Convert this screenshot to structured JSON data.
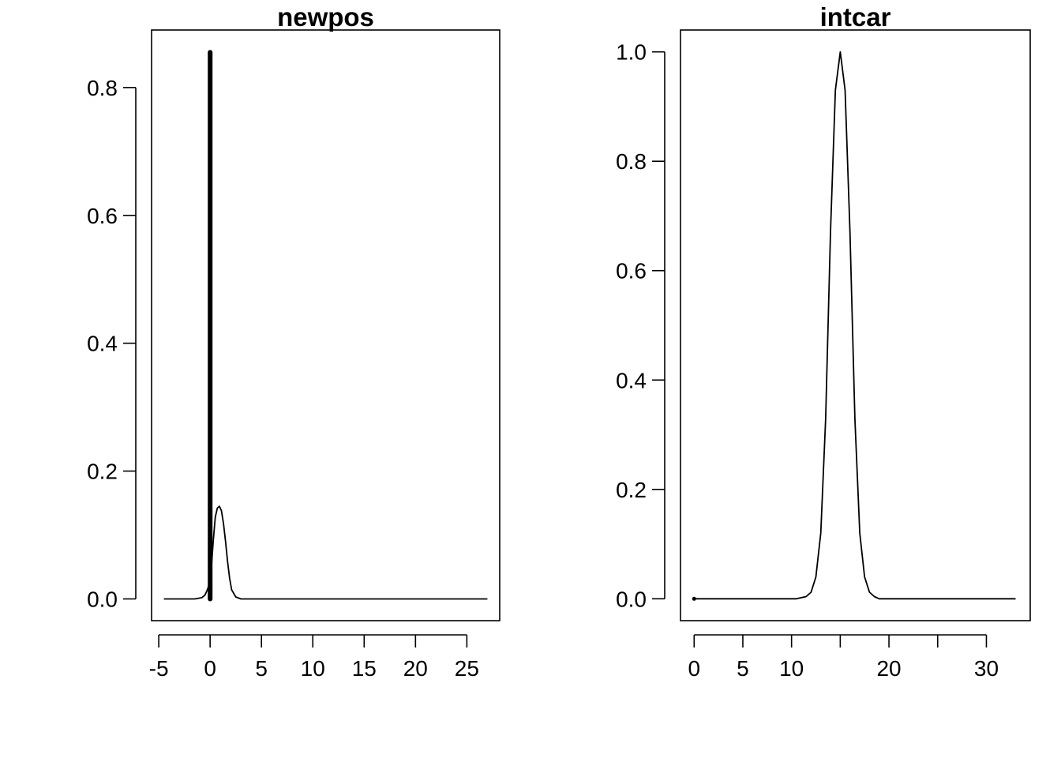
{
  "chart_data": [
    {
      "type": "line",
      "title": "newpos",
      "xlabel": "",
      "ylabel": "",
      "xlim": [
        -5.7,
        28.2
      ],
      "ylim": [
        -0.034,
        0.89
      ],
      "xticks": [
        -5,
        0,
        5,
        10,
        15,
        20,
        25
      ],
      "yticks": [
        0.0,
        0.2,
        0.4,
        0.6,
        0.8
      ],
      "ytick_labels": [
        "0.0",
        "0.2",
        "0.4",
        "0.6",
        "0.8"
      ],
      "grid": false,
      "series": [
        {
          "style": "thin-line",
          "x": [
            -4.5,
            -1.5,
            -0.8,
            -0.5,
            -0.3,
            -0.1,
            0.0,
            0.1,
            0.3,
            0.5,
            0.7,
            0.9,
            1.1,
            1.3,
            1.5,
            1.7,
            1.9,
            2.1,
            2.5,
            3.0,
            5.0,
            27.0
          ],
          "y": [
            0.0,
            0.0,
            0.002,
            0.006,
            0.013,
            0.022,
            0.03,
            0.045,
            0.09,
            0.128,
            0.142,
            0.145,
            0.138,
            0.118,
            0.09,
            0.058,
            0.032,
            0.014,
            0.003,
            0.0,
            0.0,
            0.0
          ]
        },
        {
          "style": "thick-spike",
          "x": [
            0,
            0
          ],
          "y": [
            0.0,
            0.855
          ]
        }
      ]
    },
    {
      "type": "line",
      "title": "intcar",
      "xlabel": "",
      "ylabel": "",
      "xlim": [
        -1.4,
        34.5
      ],
      "ylim": [
        -0.04,
        1.04
      ],
      "xticks": [
        0,
        5,
        10,
        15,
        20,
        25,
        30
      ],
      "xtick_labels": [
        "0",
        "5",
        "10",
        "",
        "20",
        "",
        "30"
      ],
      "yticks": [
        0.0,
        0.2,
        0.4,
        0.6,
        0.8,
        1.0
      ],
      "ytick_labels": [
        "0.0",
        "0.2",
        "0.4",
        "0.6",
        "0.8",
        "1.0"
      ],
      "grid": false,
      "series": [
        {
          "style": "thin-line",
          "x": [
            0,
            10.5,
            11.5,
            12.0,
            12.5,
            13.0,
            13.5,
            14.0,
            14.5,
            15.0,
            15.5,
            16.0,
            16.5,
            17.0,
            17.5,
            18.0,
            18.5,
            19.0,
            33.0
          ],
          "y": [
            0.0,
            0.0,
            0.004,
            0.012,
            0.04,
            0.12,
            0.33,
            0.67,
            0.93,
            1.0,
            0.93,
            0.67,
            0.33,
            0.12,
            0.04,
            0.012,
            0.004,
            0.0,
            0.0
          ]
        }
      ]
    }
  ]
}
